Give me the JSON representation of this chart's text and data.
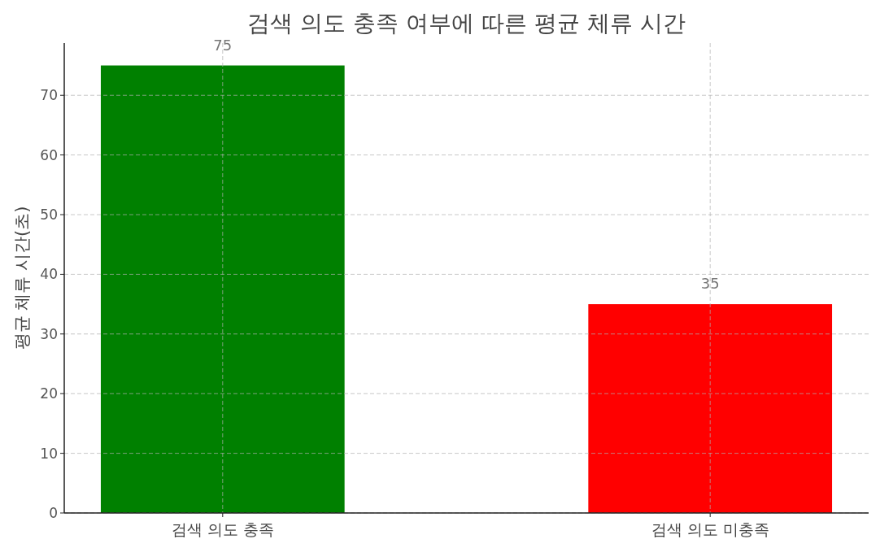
{
  "chart_data": {
    "type": "bar",
    "title": "검색 의도 충족 여부에 따른 평균 체류 시간",
    "ylabel": "평균 체류 시간(초)",
    "categories": [
      "검색 의도 충족",
      "검색 의도 미충족"
    ],
    "values": [
      75,
      35
    ],
    "colors": [
      "#008000",
      "#ff0000"
    ],
    "ylim": [
      0,
      78.75
    ],
    "yticks": [
      0,
      10,
      20,
      30,
      40,
      50,
      60,
      70
    ],
    "grid": true,
    "data_labels": true
  }
}
